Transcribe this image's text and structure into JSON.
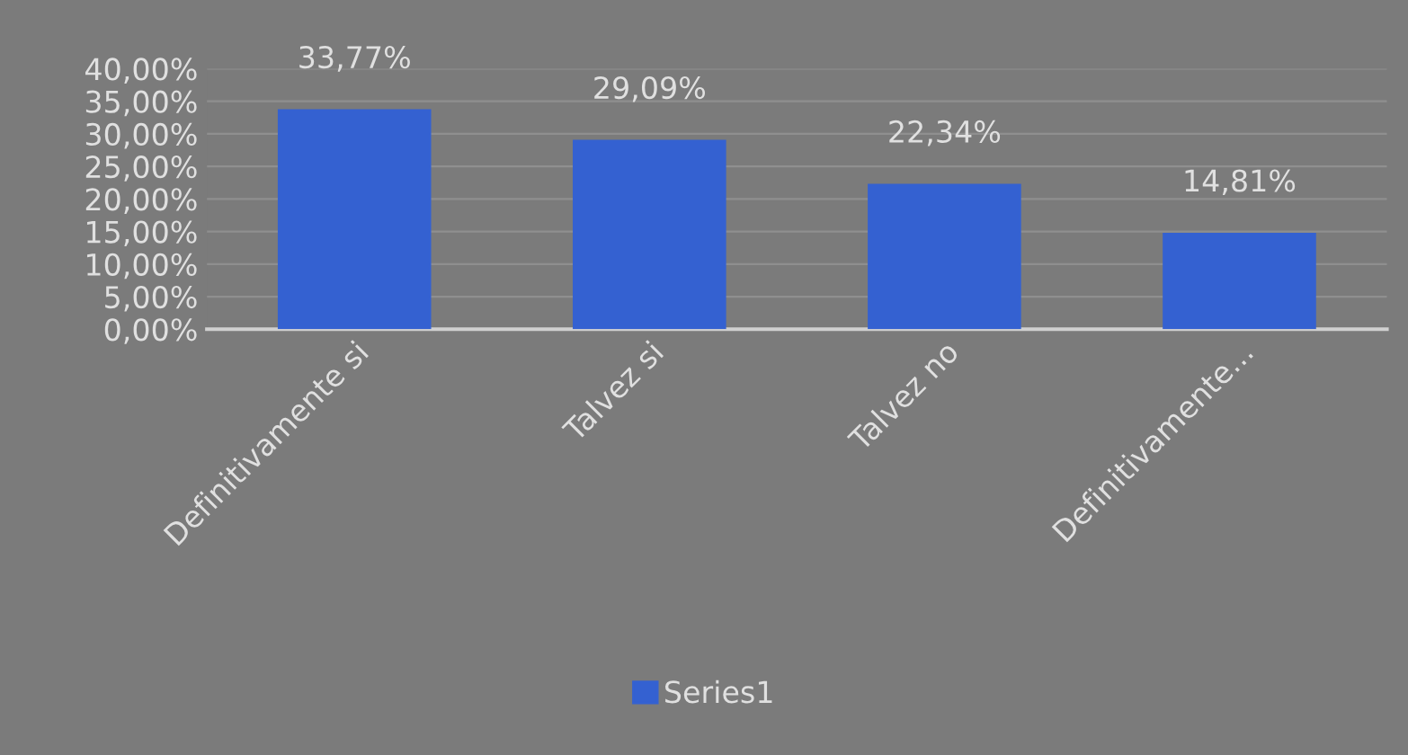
{
  "chart_data": {
    "type": "bar",
    "categories": [
      "Definitivamente si",
      "Talvez si",
      "Talvez no",
      "Definitivamente..."
    ],
    "series": [
      {
        "name": "Series1",
        "color": "#3461d1",
        "values": [
          33.77,
          29.09,
          22.34,
          14.81
        ],
        "value_labels": [
          "33,77%",
          "29,09%",
          "22,34%",
          "14,81%"
        ]
      }
    ],
    "ylim": [
      0,
      40
    ],
    "yticks": [
      {
        "value": 0,
        "label": "0,00%"
      },
      {
        "value": 5,
        "label": "5,00%"
      },
      {
        "value": 10,
        "label": "10,00%"
      },
      {
        "value": 15,
        "label": "15,00%"
      },
      {
        "value": 20,
        "label": "20,00%"
      },
      {
        "value": 25,
        "label": "25,00%"
      },
      {
        "value": 30,
        "label": "30,00%"
      },
      {
        "value": 35,
        "label": "35,00%"
      },
      {
        "value": 40,
        "label": "40,00%"
      }
    ],
    "grid": "y",
    "legend": "bottom"
  }
}
